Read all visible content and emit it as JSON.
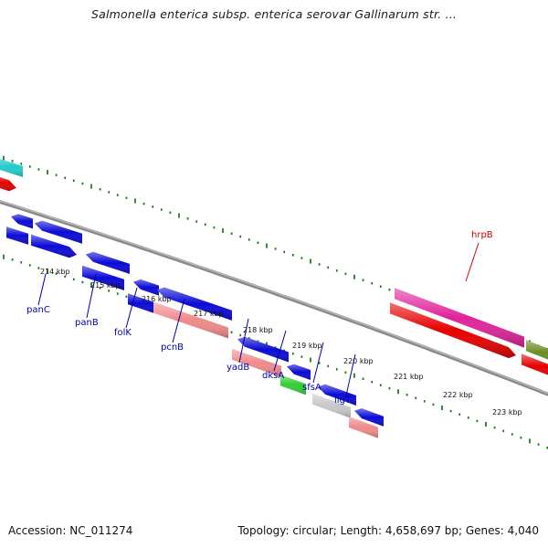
{
  "title": "Salmonella enterica subsp. enterica serovar Gallinarum str. ...",
  "footer": {
    "accession": "Accession: NC_011274",
    "stats": "Topology: circular; Length: 4,658,697 bp; Genes: 4,040"
  },
  "scale": {
    "unit_label": "kbp",
    "ticks": [
      "214 kbp",
      "215 kbp",
      "216 kbp",
      "217 kbp",
      "218 kbp",
      "219 kbp",
      "220 kbp",
      "221 kbp",
      "222 kbp",
      "223 kbp"
    ]
  },
  "colors": {
    "backbone": "#8a8a8a",
    "tick": "#1f7a1f",
    "forward_cds": "#0a0ad6",
    "reverse_cds": "#0a0ad6",
    "pseudo": "#ef8a8a",
    "rna": "#33cc33",
    "other": "#c8c8c8",
    "hrpB_fwd": "#e0249b",
    "hrpB_rev": "#e60000",
    "cyan": "#22cccc",
    "olive": "#6b8e23",
    "label_blue": "#0000aa",
    "label_red": "#cc0000"
  },
  "gene_labels": [
    {
      "name": "panC",
      "color": "label_blue"
    },
    {
      "name": "panB",
      "color": "label_blue"
    },
    {
      "name": "folK",
      "color": "label_blue"
    },
    {
      "name": "pcnB",
      "color": "label_blue"
    },
    {
      "name": "yadB",
      "color": "label_blue"
    },
    {
      "name": "dksA",
      "color": "label_blue"
    },
    {
      "name": "sfsA",
      "color": "label_blue"
    },
    {
      "name": "ligT",
      "color": "label_blue"
    },
    {
      "name": "hrpB",
      "color": "label_red"
    }
  ]
}
